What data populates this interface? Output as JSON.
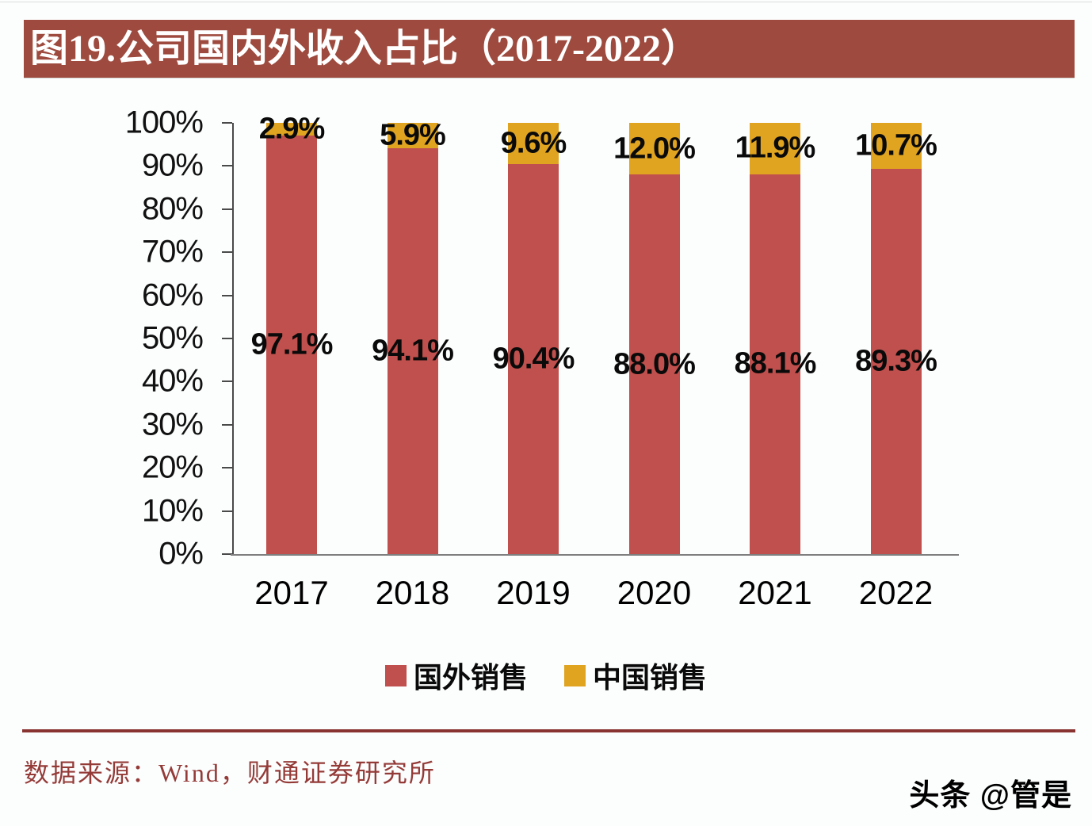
{
  "header": {
    "title": "图19.公司国内外收入占比（2017-2022）",
    "bar_color": "#9e4a3e",
    "text_color": "#ffffff"
  },
  "chart_data": {
    "type": "bar",
    "stacked": true,
    "title": "图19.公司国内外收入占比（2017-2022）",
    "categories": [
      "2017",
      "2018",
      "2019",
      "2020",
      "2021",
      "2022"
    ],
    "series": [
      {
        "name": "国外销售",
        "color": "#c0504d",
        "values": [
          97.1,
          94.1,
          90.4,
          88.0,
          88.1,
          89.3
        ],
        "labels": [
          "97.1%",
          "94.1%",
          "90.4%",
          "88.0%",
          "88.1%",
          "89.3%"
        ]
      },
      {
        "name": "中国销售",
        "color": "#e0a421",
        "values": [
          2.9,
          5.9,
          9.6,
          12.0,
          11.9,
          10.7
        ],
        "labels": [
          "2.9%",
          "5.9%",
          "9.6%",
          "12.0%",
          "11.9%",
          "10.7%"
        ]
      }
    ],
    "y_ticks": [
      "0%",
      "10%",
      "20%",
      "30%",
      "40%",
      "50%",
      "60%",
      "70%",
      "80%",
      "90%",
      "100%"
    ],
    "ylim": [
      0,
      100
    ],
    "xlabel": "",
    "ylabel": "",
    "grid": false,
    "legend_position": "bottom",
    "axis_colors": {
      "y_axis_line": "#4a4a4a",
      "x_axis_line": "#7f7f7f",
      "tick_mark": "#4a4a4a"
    }
  },
  "footer": {
    "source": "数据来源：Wind，财通证券研究所",
    "text_color": "#943b38",
    "rule_color": "#8a3432"
  },
  "watermark": {
    "text": "头条 @管是"
  }
}
